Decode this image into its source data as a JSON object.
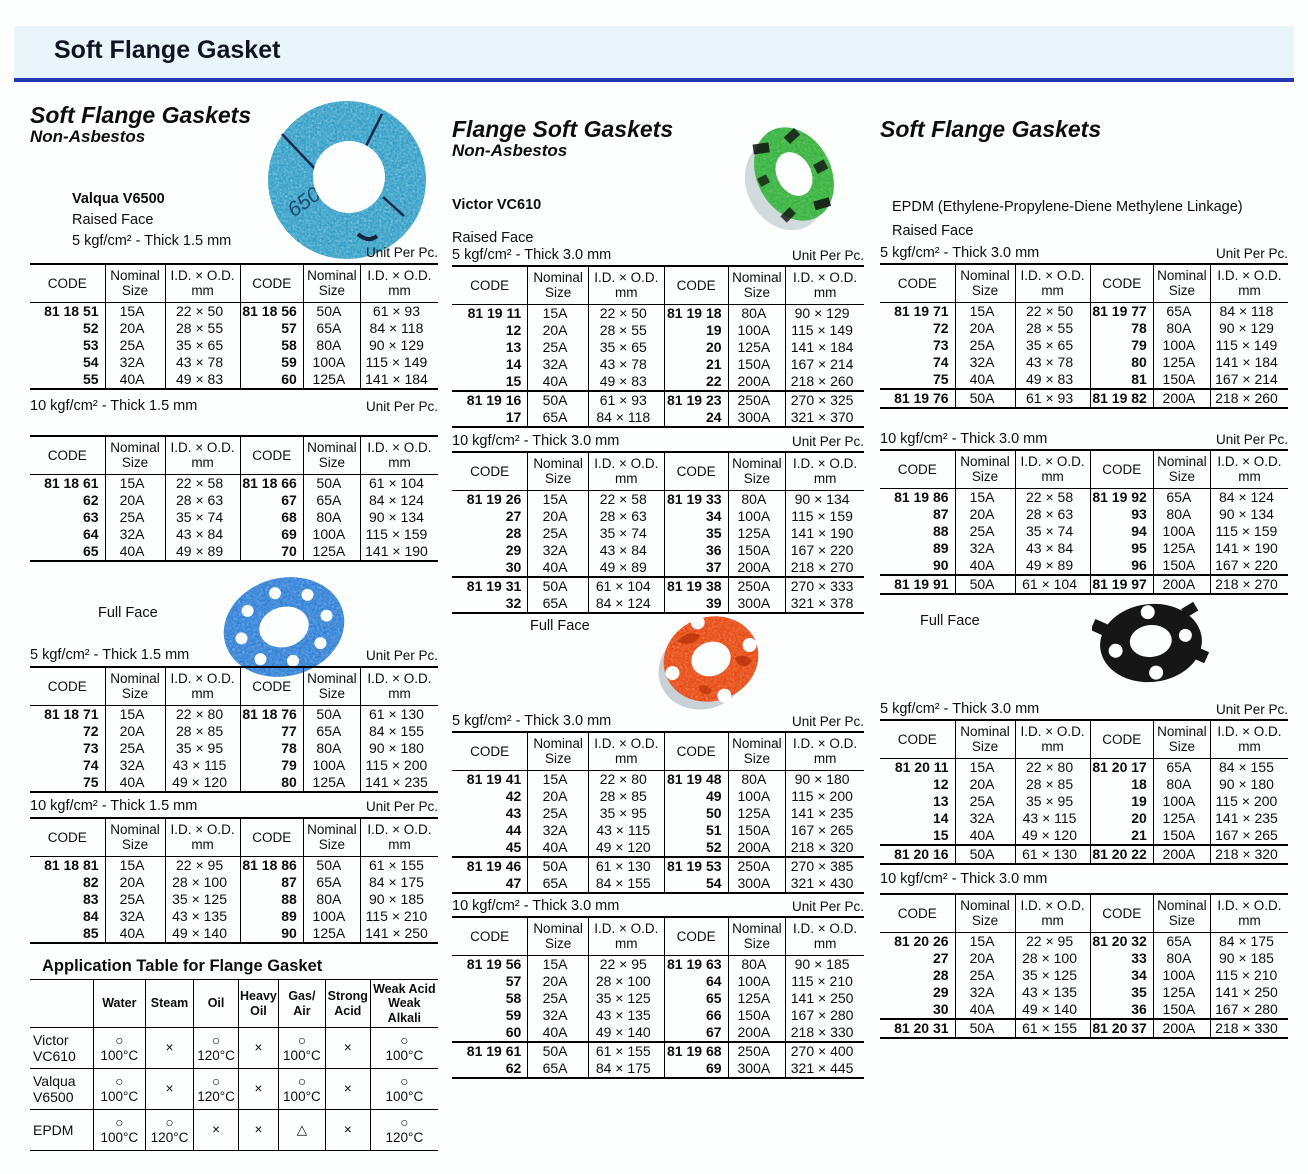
{
  "page": {
    "title": "Soft Flange Gasket",
    "table_headers": [
      "CODE",
      "Nominal\nSize",
      "I.D. × O.D.\nmm",
      "CODE",
      "Nominal\nSize",
      "I.D. × O.D.\nmm"
    ]
  },
  "colors": {
    "rule_blue": "#2636b2",
    "band_blue": "#e9f5f9",
    "gasket_ring_blue": "#2f9dc6",
    "gasket_fullface_blue": "#2e7fd6",
    "gasket_green": "#35b23c",
    "gasket_orange": "#e8480f",
    "gasket_black": "#161616"
  },
  "left": {
    "heading": "Soft Flange Gaskets",
    "subheading": "Non-Asbestos",
    "product": "Valqua V6500",
    "face": "Raised Face",
    "spec": "5 kgf/cm² - Thick 1.5 mm",
    "full_face_label": "Full Face",
    "gasket_image": "blue non-asbestos ring gasket marked 6500",
    "full_face_image": "blue full-face gasket with eight bolt holes"
  },
  "mid": {
    "heading": "Flange Soft Gaskets",
    "subheading": "Non-Asbestos",
    "product": "Victor VC610",
    "face": "Raised Face",
    "full_face_label": "Full Face",
    "gasket_image": "green ring gasket",
    "full_face_image": "orange full-face gasket with bolt holes"
  },
  "right": {
    "heading": "Soft Flange Gaskets",
    "product": "EPDM (Ethylene-Propylene-Diene Methylene Linkage)",
    "face": "Raised Face",
    "full_face_label": "Full Face",
    "full_face_image": "black full-face gasket with bolt holes"
  },
  "tables": {
    "left1": {
      "spec": "",
      "unit": "Unit Per Pc.",
      "groups": [
        [
          [
            "81 18 51",
            "15A",
            "22 × 50",
            "81 18 56",
            "50A",
            "61 × 93"
          ],
          [
            "52",
            "20A",
            "28 × 55",
            "57",
            "65A",
            "84 × 118"
          ],
          [
            "53",
            "25A",
            "35 × 65",
            "58",
            "80A",
            "90 × 129"
          ],
          [
            "54",
            "32A",
            "43 × 78",
            "59",
            "100A",
            "115 × 149"
          ],
          [
            "55",
            "40A",
            "49 × 83",
            "60",
            "125A",
            "141 × 184"
          ]
        ]
      ]
    },
    "left2": {
      "spec": "10 kgf/cm² - Thick 1.5 mm",
      "unit": "Unit Per Pc.",
      "groups": [
        [
          [
            "81 18 61",
            "15A",
            "22 × 58",
            "81 18 66",
            "50A",
            "61 × 104"
          ],
          [
            "62",
            "20A",
            "28 × 63",
            "67",
            "65A",
            "84 × 124"
          ],
          [
            "63",
            "25A",
            "35 × 74",
            "68",
            "80A",
            "90 × 134"
          ],
          [
            "64",
            "32A",
            "43 × 84",
            "69",
            "100A",
            "115 × 159"
          ],
          [
            "65",
            "40A",
            "49 × 89",
            "70",
            "125A",
            "141 × 190"
          ]
        ]
      ]
    },
    "left3": {
      "spec": "5 kgf/cm² - Thick 1.5 mm",
      "unit": "Unit Per Pc.",
      "groups": [
        [
          [
            "81 18 71",
            "15A",
            "22 × 80",
            "81 18 76",
            "50A",
            "61 × 130"
          ],
          [
            "72",
            "20A",
            "28 × 85",
            "77",
            "65A",
            "84 × 155"
          ],
          [
            "73",
            "25A",
            "35 × 95",
            "78",
            "80A",
            "90 × 180"
          ],
          [
            "74",
            "32A",
            "43 × 115",
            "79",
            "100A",
            "115 × 200"
          ],
          [
            "75",
            "40A",
            "49 × 120",
            "80",
            "125A",
            "141 × 235"
          ]
        ]
      ]
    },
    "left4": {
      "spec": "10 kgf/cm² - Thick 1.5 mm",
      "unit": "Unit Per Pc.",
      "groups": [
        [
          [
            "81 18 81",
            "15A",
            "22 × 95",
            "81 18 86",
            "50A",
            "61 × 155"
          ],
          [
            "82",
            "20A",
            "28 × 100",
            "87",
            "65A",
            "84 × 175"
          ],
          [
            "83",
            "25A",
            "35 × 125",
            "88",
            "80A",
            "90 × 185"
          ],
          [
            "84",
            "32A",
            "43 × 135",
            "89",
            "100A",
            "115 × 210"
          ],
          [
            "85",
            "40A",
            "49 × 140",
            "90",
            "125A",
            "141 × 250"
          ]
        ]
      ]
    },
    "mid1": {
      "spec": "5 kgf/cm² - Thick 3.0 mm",
      "unit": "Unit Per Pc.",
      "groups": [
        [
          [
            "81 19 11",
            "15A",
            "22 × 50",
            "81 19 18",
            "80A",
            "90 × 129"
          ],
          [
            "12",
            "20A",
            "28 × 55",
            "19",
            "100A",
            "115 × 149"
          ],
          [
            "13",
            "25A",
            "35 × 65",
            "20",
            "125A",
            "141 × 184"
          ],
          [
            "14",
            "32A",
            "43 × 78",
            "21",
            "150A",
            "167 × 214"
          ],
          [
            "15",
            "40A",
            "49 × 83",
            "22",
            "200A",
            "218 × 260"
          ]
        ],
        [
          [
            "81 19 16",
            "50A",
            "61 × 93",
            "81 19 23",
            "250A",
            "270 × 325"
          ],
          [
            "17",
            "65A",
            "84 × 118",
            "24",
            "300A",
            "321 × 370"
          ]
        ]
      ]
    },
    "mid2": {
      "spec": "10 kgf/cm² - Thick 3.0 mm",
      "unit": "Unit Per Pc.",
      "groups": [
        [
          [
            "81 19 26",
            "15A",
            "22 × 58",
            "81 19 33",
            "80A",
            "90 × 134"
          ],
          [
            "27",
            "20A",
            "28 × 63",
            "34",
            "100A",
            "115 × 159"
          ],
          [
            "28",
            "25A",
            "35 × 74",
            "35",
            "125A",
            "141 × 190"
          ],
          [
            "29",
            "32A",
            "43 × 84",
            "36",
            "150A",
            "167 × 220"
          ],
          [
            "30",
            "40A",
            "49 × 89",
            "37",
            "200A",
            "218 × 270"
          ]
        ],
        [
          [
            "81 19 31",
            "50A",
            "61 × 104",
            "81 19 38",
            "250A",
            "270 × 333"
          ],
          [
            "32",
            "65A",
            "84 × 124",
            "39",
            "300A",
            "321 × 378"
          ]
        ]
      ]
    },
    "mid3": {
      "spec": "5 kgf/cm² - Thick 3.0 mm",
      "unit": "Unit Per Pc.",
      "groups": [
        [
          [
            "81 19 41",
            "15A",
            "22 × 80",
            "81 19 48",
            "80A",
            "90 × 180"
          ],
          [
            "42",
            "20A",
            "28 × 85",
            "49",
            "100A",
            "115 × 200"
          ],
          [
            "43",
            "25A",
            "35 × 95",
            "50",
            "125A",
            "141 × 235"
          ],
          [
            "44",
            "32A",
            "43 × 115",
            "51",
            "150A",
            "167 × 265"
          ],
          [
            "45",
            "40A",
            "49 × 120",
            "52",
            "200A",
            "218 × 320"
          ]
        ],
        [
          [
            "81 19 46",
            "50A",
            "61 × 130",
            "81 19 53",
            "250A",
            "270 × 385"
          ],
          [
            "47",
            "65A",
            "84 × 155",
            "54",
            "300A",
            "321 × 430"
          ]
        ]
      ]
    },
    "mid4": {
      "spec": "10 kgf/cm² - Thick 3.0 mm",
      "unit": "Unit Per Pc.",
      "groups": [
        [
          [
            "81 19 56",
            "15A",
            "22 × 95",
            "81 19 63",
            "80A",
            "90 × 185"
          ],
          [
            "57",
            "20A",
            "28 × 100",
            "64",
            "100A",
            "115 × 210"
          ],
          [
            "58",
            "25A",
            "35 × 125",
            "65",
            "125A",
            "141 × 250"
          ],
          [
            "59",
            "32A",
            "43 × 135",
            "66",
            "150A",
            "167 × 280"
          ],
          [
            "60",
            "40A",
            "49 × 140",
            "67",
            "200A",
            "218 × 330"
          ]
        ],
        [
          [
            "81 19 61",
            "50A",
            "61 × 155",
            "81 19 68",
            "250A",
            "270 × 400"
          ],
          [
            "62",
            "65A",
            "84 × 175",
            "69",
            "300A",
            "321 × 445"
          ]
        ]
      ]
    },
    "right1": {
      "spec": "5 kgf/cm² - Thick 3.0 mm",
      "unit": "Unit Per Pc.",
      "groups": [
        [
          [
            "81 19 71",
            "15A",
            "22 × 50",
            "81 19 77",
            "65A",
            "84 × 118"
          ],
          [
            "72",
            "20A",
            "28 × 55",
            "78",
            "80A",
            "90 × 129"
          ],
          [
            "73",
            "25A",
            "35 × 65",
            "79",
            "100A",
            "115 × 149"
          ],
          [
            "74",
            "32A",
            "43 × 78",
            "80",
            "125A",
            "141 × 184"
          ],
          [
            "75",
            "40A",
            "49 × 83",
            "81",
            "150A",
            "167 × 214"
          ]
        ],
        [
          [
            "81 19 76",
            "50A",
            "61 × 93",
            "81 19 82",
            "200A",
            "218 × 260"
          ]
        ]
      ]
    },
    "right2": {
      "spec": "10 kgf/cm² - Thick 3.0 mm",
      "unit": "Unit Per Pc.",
      "groups": [
        [
          [
            "81 19 86",
            "15A",
            "22 × 58",
            "81 19 92",
            "65A",
            "84 × 124"
          ],
          [
            "87",
            "20A",
            "28 × 63",
            "93",
            "80A",
            "90 × 134"
          ],
          [
            "88",
            "25A",
            "35 × 74",
            "94",
            "100A",
            "115 × 159"
          ],
          [
            "89",
            "32A",
            "43 × 84",
            "95",
            "125A",
            "141 × 190"
          ],
          [
            "90",
            "40A",
            "49 × 89",
            "96",
            "150A",
            "167 × 220"
          ]
        ],
        [
          [
            "81 19 91",
            "50A",
            "61 × 104",
            "81 19 97",
            "200A",
            "218 × 270"
          ]
        ]
      ]
    },
    "right3": {
      "spec": "5 kgf/cm² - Thick 3.0 mm",
      "unit": "Unit Per Pc.",
      "groups": [
        [
          [
            "81 20 11",
            "15A",
            "22 × 80",
            "81 20 17",
            "65A",
            "84 × 155"
          ],
          [
            "12",
            "20A",
            "28 × 85",
            "18",
            "80A",
            "90 × 180"
          ],
          [
            "13",
            "25A",
            "35 × 95",
            "19",
            "100A",
            "115 × 200"
          ],
          [
            "14",
            "32A",
            "43 × 115",
            "20",
            "125A",
            "141 × 235"
          ],
          [
            "15",
            "40A",
            "49 × 120",
            "21",
            "150A",
            "167 × 265"
          ]
        ],
        [
          [
            "81 20 16",
            "50A",
            "61 × 130",
            "81 20 22",
            "200A",
            "218 × 320"
          ]
        ]
      ]
    },
    "right4": {
      "spec": "10 kgf/cm² - Thick 3.0 mm",
      "unit": "",
      "groups": [
        [
          [
            "81 20 26",
            "15A",
            "22 × 95",
            "81 20 32",
            "65A",
            "84 × 175"
          ],
          [
            "27",
            "20A",
            "28 × 100",
            "33",
            "80A",
            "90 × 185"
          ],
          [
            "28",
            "25A",
            "35 × 125",
            "34",
            "100A",
            "115 × 210"
          ],
          [
            "29",
            "32A",
            "43 × 135",
            "35",
            "125A",
            "141 × 250"
          ],
          [
            "30",
            "40A",
            "49 × 140",
            "36",
            "150A",
            "167 × 280"
          ]
        ],
        [
          [
            "81 20 31",
            "50A",
            "61 × 155",
            "81 20 37",
            "200A",
            "218 × 330"
          ]
        ]
      ]
    }
  },
  "application_table": {
    "title": "Application Table for Flange Gasket",
    "headers": [
      "",
      "Water",
      "Steam",
      "Oil",
      "Heavy\nOil",
      "Gas/\nAir",
      "Strong\nAcid",
      "Weak Acid\nWeak Alkali"
    ],
    "rows": [
      [
        "Victor\nVC610",
        "○\n100°C",
        "×",
        "○\n120°C",
        "×",
        "○\n100°C",
        "×",
        "○\n100°C"
      ],
      [
        "Valqua\nV6500",
        "○\n100°C",
        "×",
        "○\n120°C",
        "×",
        "○\n100°C",
        "×",
        "○\n100°C"
      ],
      [
        "EPDM",
        "○\n100°C",
        "○\n120°C",
        "×",
        "×",
        "△",
        "×",
        "○\n120°C"
      ]
    ]
  }
}
